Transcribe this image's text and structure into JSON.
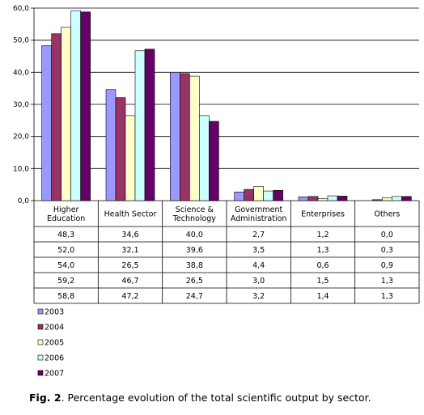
{
  "chart_data": {
    "type": "bar",
    "categories": [
      [
        "Higher",
        "Education"
      ],
      [
        "Health Sector"
      ],
      [
        "Science &",
        "Technology"
      ],
      [
        "Government",
        "Administration"
      ],
      [
        "Enterprises"
      ],
      [
        "Others"
      ]
    ],
    "series": [
      {
        "name": "2003",
        "color": "#9999ff",
        "values": [
          48.3,
          34.6,
          40.0,
          2.7,
          1.2,
          0.0
        ],
        "labels": [
          "48,3",
          "34,6",
          "40,0",
          "2,7",
          "1,2",
          "0,0"
        ]
      },
      {
        "name": "2004",
        "color": "#993366",
        "values": [
          52.0,
          32.1,
          39.6,
          3.5,
          1.3,
          0.3
        ],
        "labels": [
          "52,0",
          "32,1",
          "39,6",
          "3,5",
          "1,3",
          "0,3"
        ]
      },
      {
        "name": "2005",
        "color": "#ffffcc",
        "values": [
          54.0,
          26.5,
          38.8,
          4.4,
          0.6,
          0.9
        ],
        "labels": [
          "54,0",
          "26,5",
          "38,8",
          "4,4",
          "0,6",
          "0,9"
        ]
      },
      {
        "name": "2006",
        "color": "#ccffff",
        "values": [
          59.2,
          46.7,
          26.5,
          3.0,
          1.5,
          1.3
        ],
        "labels": [
          "59,2",
          "46,7",
          "26,5",
          "3,0",
          "1,5",
          "1,3"
        ]
      },
      {
        "name": "2007",
        "color": "#660066",
        "values": [
          58.8,
          47.2,
          24.7,
          3.2,
          1.4,
          1.3
        ],
        "labels": [
          "58,8",
          "47,2",
          "24,7",
          "3,2",
          "1,4",
          "1,3"
        ]
      }
    ],
    "ylim": [
      0,
      60
    ],
    "yticks": [
      0,
      10,
      20,
      30,
      40,
      50,
      60
    ],
    "ytick_labels": [
      "0,0",
      "10,0",
      "20,0",
      "30,0",
      "40,0",
      "50,0",
      "60,0"
    ],
    "grid": true,
    "legend": "bottom-left",
    "data_table": true
  },
  "caption": {
    "label": "Fig. 2",
    "text": ". Percentage evolution of the total scientific output by sector."
  }
}
